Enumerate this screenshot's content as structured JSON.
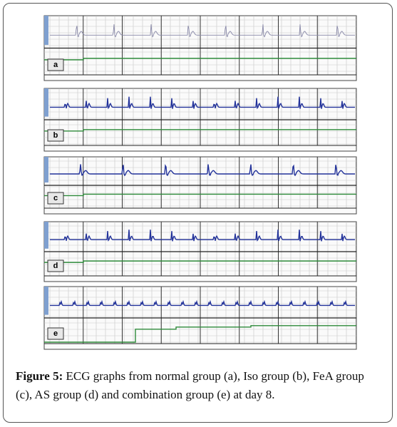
{
  "figure": {
    "panels": [
      {
        "label": "a"
      },
      {
        "label": "b"
      },
      {
        "label": "c"
      },
      {
        "label": "d"
      },
      {
        "label": "e"
      }
    ],
    "caption": {
      "label": "Figure 5:",
      "text": "ECG graphs from normal group (a), Iso group (b), FeA group (c), AS group (d) and combination group (e) at day 8."
    }
  }
}
